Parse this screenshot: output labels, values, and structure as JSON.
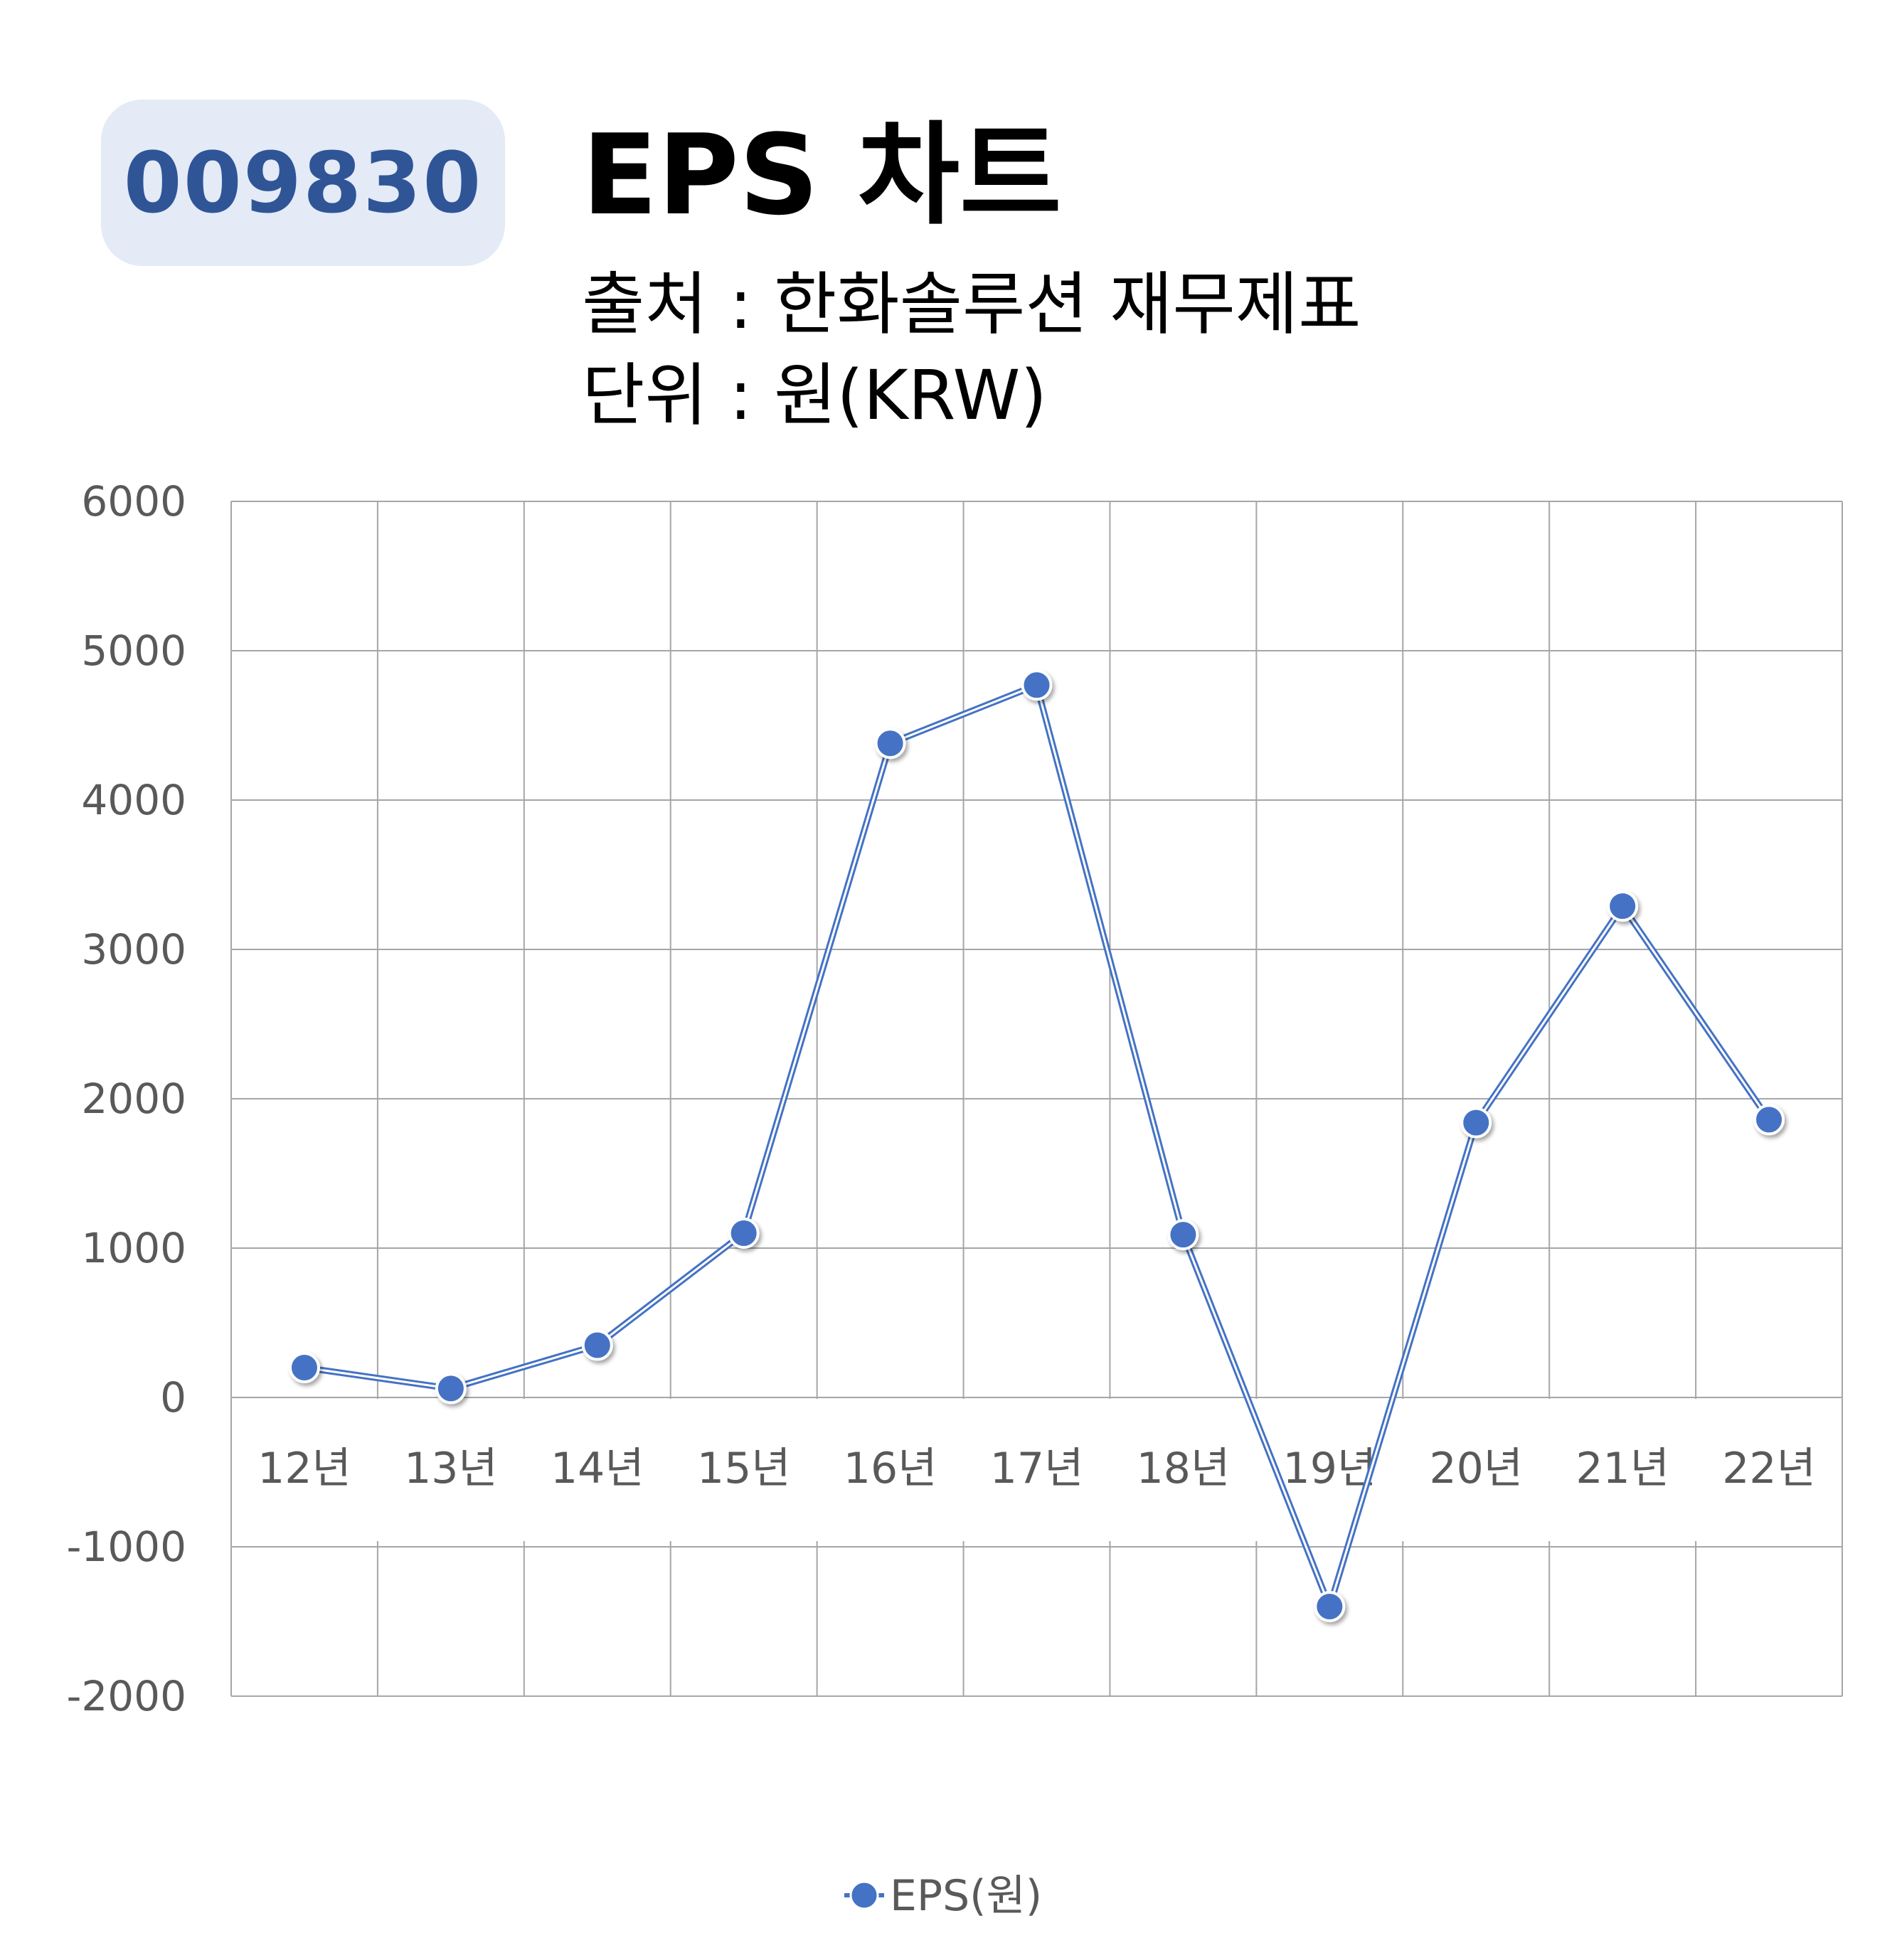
{
  "header": {
    "code": "009830",
    "title": "EPS 차트",
    "source": "출처 : 한화솔루션 재무제표",
    "unit": "단위 : 원(KRW)"
  },
  "chart_data": {
    "type": "line",
    "categories": [
      "12년",
      "13년",
      "14년",
      "15년",
      "16년",
      "17년",
      "18년",
      "19년",
      "20년",
      "21년",
      "22년"
    ],
    "series": [
      {
        "name": "EPS(원)",
        "values": [
          200,
          60,
          350,
          1100,
          4380,
          4770,
          1090,
          -1400,
          1840,
          3290,
          1860
        ]
      }
    ],
    "yticks": [
      "6000",
      "5000",
      "4000",
      "3000",
      "2000",
      "1000",
      "0",
      "-1000",
      "-2000"
    ],
    "ylim": [
      -2000,
      6000
    ],
    "grid": true,
    "legend": "bottom-center",
    "colors": {
      "series": "#4472c4",
      "badge_bg": "#e4eaf6",
      "badge_text": "#2f5597",
      "grid": "#a6a6a6",
      "axis_text": "#595959"
    }
  }
}
